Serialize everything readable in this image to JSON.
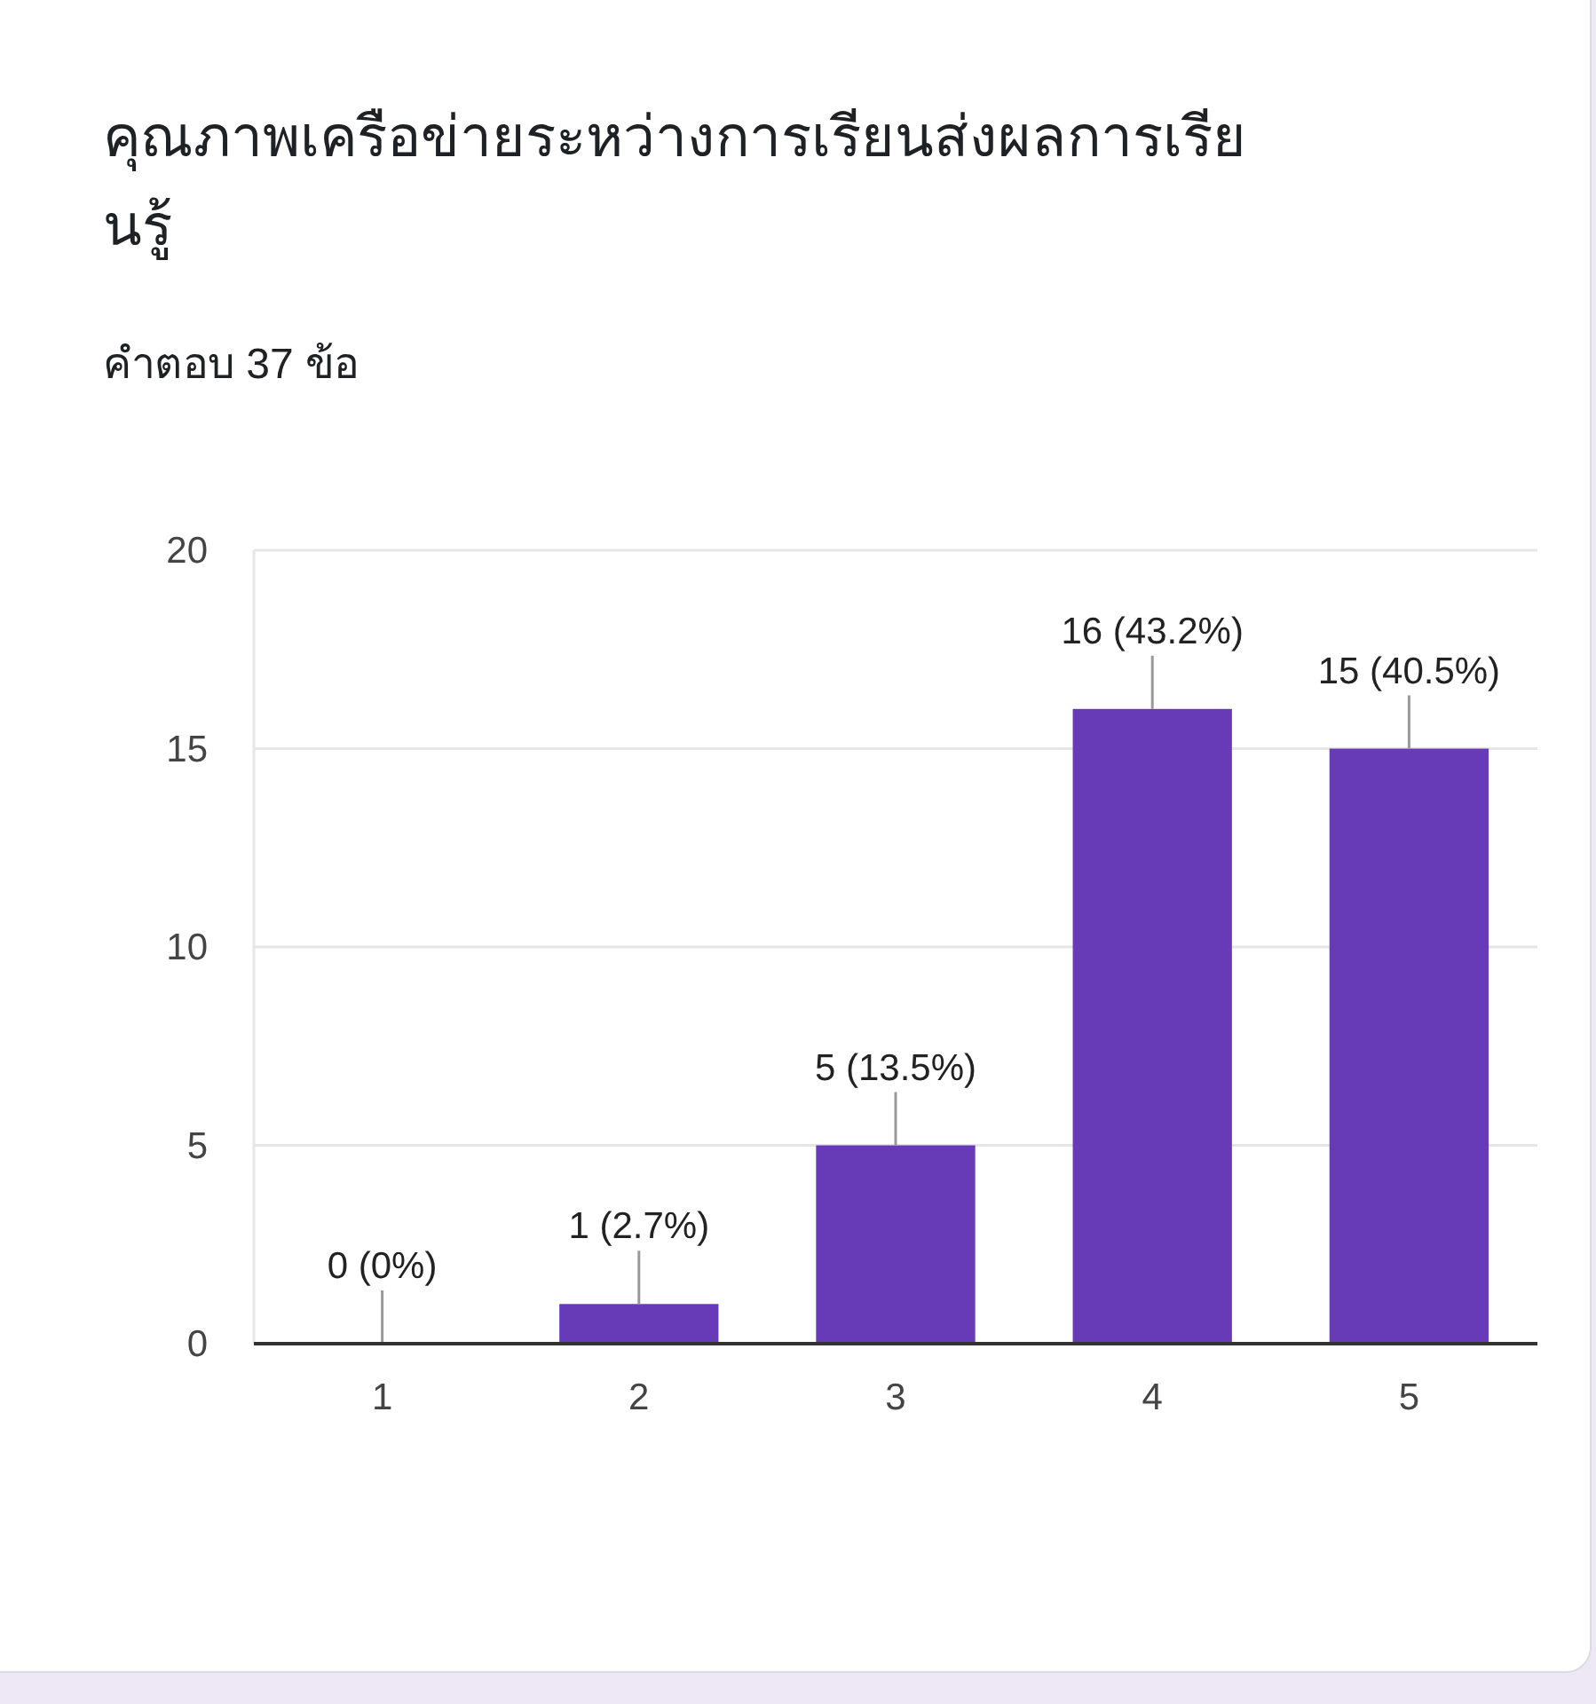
{
  "chart_data": {
    "type": "bar",
    "title": "คุณภาพเครือข่ายระหว่างการเรียนส่งผลการเรียนรู้",
    "subtitle": "คำตอบ 37 ข้อ",
    "categories": [
      "1",
      "2",
      "3",
      "4",
      "5"
    ],
    "values": [
      0,
      1,
      5,
      16,
      15
    ],
    "value_labels": [
      "0 (0%)",
      "1 (2.7%)",
      "5 (13.5%)",
      "16 (43.2%)",
      "15 (40.5%)"
    ],
    "color": "#673ab7",
    "ylim": [
      0,
      20
    ],
    "yticks": [
      0,
      5,
      10,
      15,
      20
    ],
    "grid": "y"
  }
}
